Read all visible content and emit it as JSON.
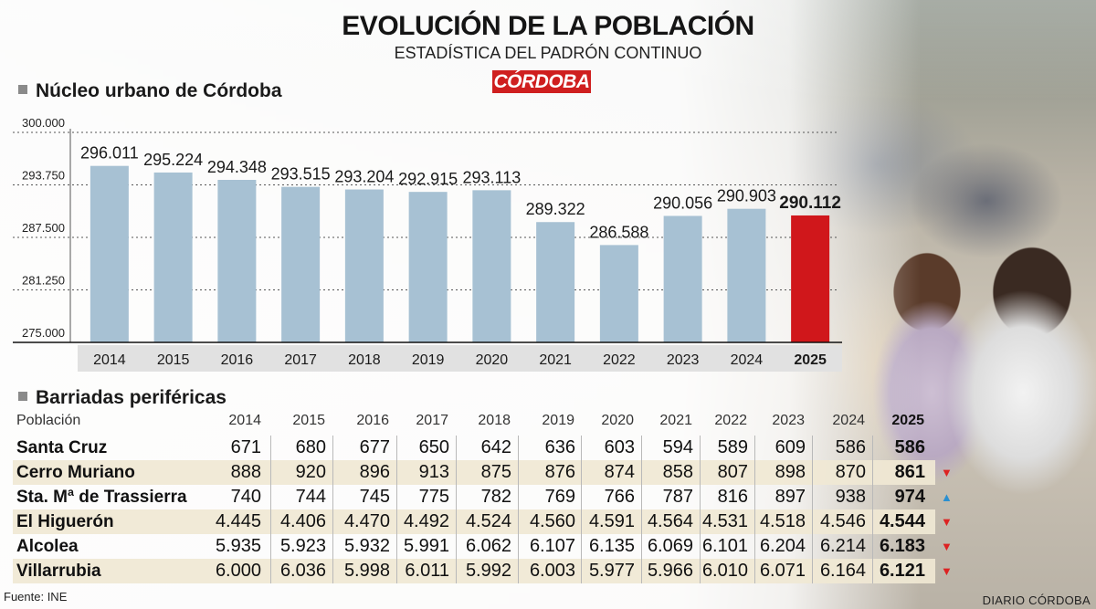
{
  "header": {
    "title": "EVOLUCIÓN DE LA POBLACIÓN",
    "subtitle": "ESTADÍSTICA DEL PADRÓN CONTINUO",
    "brand": "CÓRDOBA"
  },
  "chart_section_title": "Núcleo urbano de Córdoba",
  "colors": {
    "bar": "#a7c1d3",
    "highlight_bar": "#d0171b",
    "axis_strip": "#e1e1e1",
    "row_alt": "#f0e8d4",
    "down_arrow": "#dd2222",
    "up_arrow": "#2a8fd0"
  },
  "chart_data": {
    "type": "bar",
    "title": "Núcleo urbano de Córdoba",
    "categories": [
      "2014",
      "2015",
      "2016",
      "2017",
      "2018",
      "2019",
      "2020",
      "2021",
      "2022",
      "2023",
      "2024",
      "2025"
    ],
    "values": [
      296011,
      295224,
      294348,
      293515,
      293204,
      292915,
      293113,
      289322,
      286588,
      290056,
      290903,
      290112
    ],
    "labels": [
      "296.011",
      "295.224",
      "294.348",
      "293.515",
      "293.204",
      "292.915",
      "293.113",
      "289.322",
      "286.588",
      "290.056",
      "290.903",
      "290.112"
    ],
    "highlight_index": 11,
    "ylim": [
      275000,
      300000
    ],
    "yticks": [
      275000,
      281250,
      287500,
      293750,
      300000
    ],
    "ytick_labels": [
      "275.000",
      "281.250",
      "287.500",
      "293.750",
      "300.000"
    ],
    "grid": "dashed",
    "xlabel": "",
    "ylabel": ""
  },
  "table": {
    "section_title": "Barriadas periféricas",
    "header_label": "Población",
    "years": [
      "2014",
      "2015",
      "2016",
      "2017",
      "2018",
      "2019",
      "2020",
      "2021",
      "2022",
      "2023",
      "2024",
      "2025"
    ],
    "rows": [
      {
        "name": "Santa Cruz",
        "values": [
          "671",
          "680",
          "677",
          "650",
          "642",
          "636",
          "603",
          "594",
          "589",
          "609",
          "586",
          "586"
        ],
        "trend": ""
      },
      {
        "name": "Cerro Muriano",
        "values": [
          "888",
          "920",
          "896",
          "913",
          "875",
          "876",
          "874",
          "858",
          "807",
          "898",
          "870",
          "861"
        ],
        "trend": "down"
      },
      {
        "name": "Sta. Mª de Trassierra",
        "values": [
          "740",
          "744",
          "745",
          "775",
          "782",
          "769",
          "766",
          "787",
          "816",
          "897",
          "938",
          "974"
        ],
        "trend": "up"
      },
      {
        "name": "El Higuerón",
        "values": [
          "4.445",
          "4.406",
          "4.470",
          "4.492",
          "4.524",
          "4.560",
          "4.591",
          "4.564",
          "4.531",
          "4.518",
          "4.546",
          "4.544"
        ],
        "trend": "down"
      },
      {
        "name": "Alcolea",
        "values": [
          "5.935",
          "5.923",
          "5.932",
          "5.991",
          "6.062",
          "6.107",
          "6.135",
          "6.069",
          "6.101",
          "6.204",
          "6.214",
          "6.183"
        ],
        "trend": "down"
      },
      {
        "name": "Villarrubia",
        "values": [
          "6.000",
          "6.036",
          "5.998",
          "6.011",
          "5.992",
          "6.003",
          "5.977",
          "5.966",
          "6.010",
          "6.071",
          "6.164",
          "6.121"
        ],
        "trend": "down"
      }
    ]
  },
  "footer": {
    "source": "Fuente: INE",
    "publisher": "DIARIO CÓRDOBA"
  }
}
